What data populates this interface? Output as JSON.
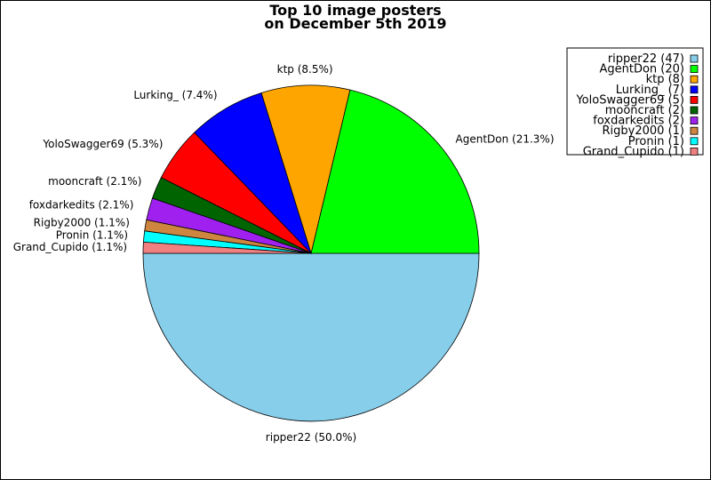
{
  "chart_data": {
    "type": "pie",
    "title_line1": "Top 10 image posters",
    "title_line2": "on December 5th 2019",
    "legend_position": "top-right",
    "slices": [
      {
        "name": "ripper22",
        "count": 47,
        "percent_label": "ripper22 (50.0%)",
        "legend_label": "ripper22 (47)",
        "color": "#87ceeb"
      },
      {
        "name": "AgentDon",
        "count": 20,
        "percent_label": "AgentDon (21.3%)",
        "legend_label": "AgentDon (20)",
        "color": "#00ff00"
      },
      {
        "name": "ktp",
        "count": 8,
        "percent_label": "ktp (8.5%)",
        "legend_label": "ktp (8)",
        "color": "#ffa500"
      },
      {
        "name": "Lurking_",
        "count": 7,
        "percent_label": "Lurking_ (7.4%)",
        "legend_label": "Lurking_ (7)",
        "color": "#0000ff"
      },
      {
        "name": "YoloSwagger69",
        "count": 5,
        "percent_label": "YoloSwagger69 (5.3%)",
        "legend_label": "YoloSwagger69 (5)",
        "color": "#ff0000"
      },
      {
        "name": "mooncraft",
        "count": 2,
        "percent_label": "mooncraft (2.1%)",
        "legend_label": "mooncraft (2)",
        "color": "#006400"
      },
      {
        "name": "foxdarkedits",
        "count": 2,
        "percent_label": "foxdarkedits (2.1%)",
        "legend_label": "foxdarkedits (2)",
        "color": "#a020f0"
      },
      {
        "name": "Rigby2000",
        "count": 1,
        "percent_label": "Rigby2000 (1.1%)",
        "legend_label": "Rigby2000 (1)",
        "color": "#cd853f"
      },
      {
        "name": "Pronin",
        "count": 1,
        "percent_label": "Pronin (1.1%)",
        "legend_label": "Pronin (1)",
        "color": "#00ffff"
      },
      {
        "name": "Grand_Cupido",
        "count": 1,
        "percent_label": "Grand_Cupido (1.1%)",
        "legend_label": "Grand_Cupido (1)",
        "color": "#f08080"
      }
    ]
  }
}
